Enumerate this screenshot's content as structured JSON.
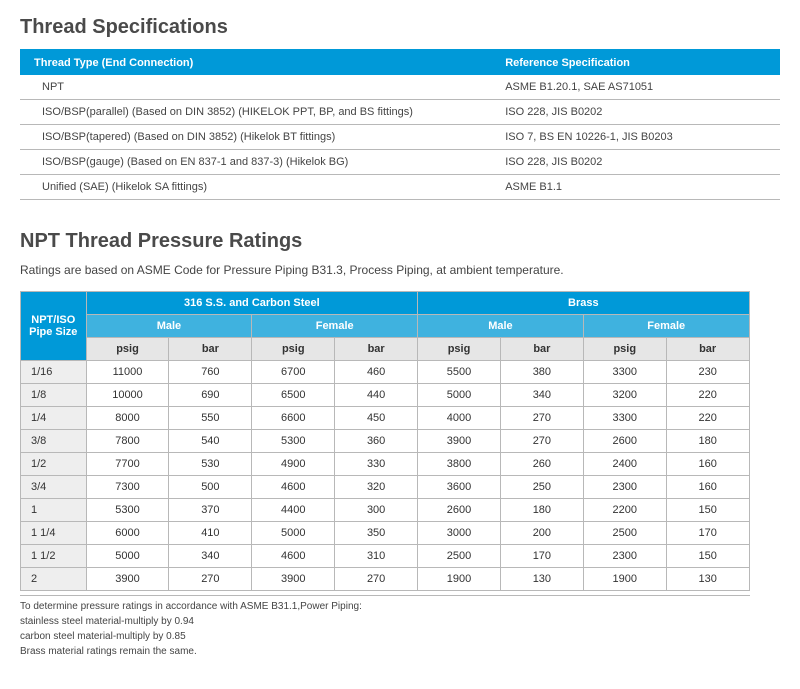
{
  "thread_specs": {
    "title": "Thread Specifications",
    "columns": [
      "Thread Type (End Connection)",
      "Reference Specification"
    ],
    "rows": [
      [
        "NPT",
        "ASME B1.20.1, SAE AS71051"
      ],
      [
        "ISO/BSP(parallel) (Based on DIN 3852) (HIKELOK PPT, BP, and BS fittings)",
        "ISO 228, JIS B0202"
      ],
      [
        "ISO/BSP(tapered) (Based on DIN 3852) (Hikelok BT fittings)",
        "ISO 7, BS EN 10226-1, JIS B0203"
      ],
      [
        "ISO/BSP(gauge) (Based on EN 837-1 and 837-3) (Hikelok BG)",
        "ISO 228, JIS B0202"
      ],
      [
        "Unified (SAE) (Hikelok SA fittings)",
        "ASME B1.1"
      ]
    ]
  },
  "pressure": {
    "title": "NPT Thread Pressure Ratings",
    "subtitle": "Ratings are based on ASME Code for Pressure Piping B31.3, Process Piping, at ambient temperature.",
    "size_header": "NPT/ISO Pipe Size",
    "material_headers": [
      "316 S.S. and Carbon Steel",
      "Brass"
    ],
    "gender_headers": [
      "Male",
      "Female",
      "Male",
      "Female"
    ],
    "unit_headers": [
      "psig",
      "bar",
      "psig",
      "bar",
      "psig",
      "bar",
      "psig",
      "bar"
    ],
    "rows": [
      {
        "size": "1/16",
        "vals": [
          11000,
          760,
          6700,
          460,
          5500,
          380,
          3300,
          230
        ]
      },
      {
        "size": "1/8",
        "vals": [
          10000,
          690,
          6500,
          440,
          5000,
          340,
          3200,
          220
        ]
      },
      {
        "size": "1/4",
        "vals": [
          8000,
          550,
          6600,
          450,
          4000,
          270,
          3300,
          220
        ]
      },
      {
        "size": "3/8",
        "vals": [
          7800,
          540,
          5300,
          360,
          3900,
          270,
          2600,
          180
        ]
      },
      {
        "size": "1/2",
        "vals": [
          7700,
          530,
          4900,
          330,
          3800,
          260,
          2400,
          160
        ]
      },
      {
        "size": "3/4",
        "vals": [
          7300,
          500,
          4600,
          320,
          3600,
          250,
          2300,
          160
        ]
      },
      {
        "size": "1",
        "vals": [
          5300,
          370,
          4400,
          300,
          2600,
          180,
          2200,
          150
        ]
      },
      {
        "size": "1 1/4",
        "vals": [
          6000,
          410,
          5000,
          350,
          3000,
          200,
          2500,
          170
        ]
      },
      {
        "size": "1 1/2",
        "vals": [
          5000,
          340,
          4600,
          310,
          2500,
          170,
          2300,
          150
        ]
      },
      {
        "size": "2",
        "vals": [
          3900,
          270,
          3900,
          270,
          1900,
          130,
          1900,
          130
        ]
      }
    ],
    "footnotes": [
      "To determine pressure ratings in accordance with ASME B31.1,Power Piping:",
      "stainless steel material-multiply by 0.94",
      "carbon steel material-multiply by 0.85",
      "Brass material ratings remain the same."
    ]
  },
  "colors": {
    "header_blue": "#0099d8",
    "header_blue2": "#3fb2df",
    "header_gray": "#e6e6e6",
    "row_gray": "#eeeeee",
    "border": "#b8b8b8",
    "text": "#333333"
  }
}
